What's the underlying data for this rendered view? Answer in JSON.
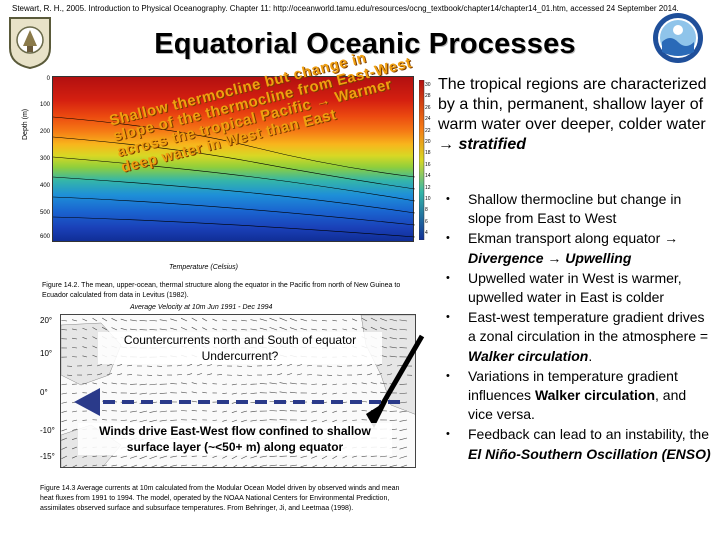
{
  "header": {
    "citation": "Stewart, R. H., 2005. Introduction to Physical Oceanography. Chapter 11: http://oceanworld.tamu.edu/resources/ocng_textbook/chapter14/chapter14_01.htm, accessed 24 September 2014.",
    "title": "Equatorial Oceanic Processes"
  },
  "figure1": {
    "y_axis_label": "Depth (m)",
    "y_ticks": [
      "0",
      "100",
      "200",
      "300",
      "400",
      "500",
      "600"
    ],
    "x_axis_label": "Temperature (Celsius)",
    "scale_ticks": [
      "30",
      "28",
      "26",
      "24",
      "22",
      "20",
      "18",
      "16",
      "14",
      "12",
      "10",
      "8",
      "6",
      "4"
    ],
    "overlay_lines": [
      "Shallow thermocline but change in",
      "slope of the thermocline from East-West",
      "across the tropical Pacific → Warmer",
      "deep water in West than East"
    ],
    "caption": "Figure 14.2. The mean, upper-ocean, thermal structure along the equator in the Pacific from north of New Guinea to Ecuador calculated from data in Levitus (1982)."
  },
  "figure2": {
    "title": "Average Velocity at 10m  Jun 1991 - Dec 1994",
    "lat_labels": [
      "20°",
      "10°",
      "0°",
      "-10°",
      "-15°"
    ],
    "overlay_top": "Countercurrents north and South of equator Undercurrent?",
    "overlay_bottom": "Winds drive East-West flow confined to shallow surface layer (~<50+ m) along equator",
    "caption": "Figure 14.3 Average currents at 10m calculated from the Modular Ocean Model driven by observed winds and mean heat fluxes from 1991 to 1994. The model, operated by the NOAA National Centers for Environmental Prediction, assimilates observed surface and subsurface temperatures. From Behringer, Ji, and Leetmaa (1998)."
  },
  "intro": {
    "text": "The tropical regions are characterized by a thin, permanent, shallow layer of warm water over deeper, colder water →",
    "emphasis": "stratified"
  },
  "bullets": [
    {
      "text": "Shallow thermocline but change in slope from East to West"
    },
    {
      "text": "Ekman transport along equator → ",
      "em1": "Divergence",
      "mid": " → ",
      "em2": "Upwelling"
    },
    {
      "text": "Upwelled water in West is warmer, upwelled water in East is colder"
    },
    {
      "text": "East-west temperature gradient drives a zonal circulation in the atmosphere = ",
      "em1": "Walker circulation",
      "end": "."
    },
    {
      "text": "Variations in temperature gradient influences ",
      "em1": "Walker circulation",
      "end": ", and vice versa."
    },
    {
      "text": "Feedback can lead to an instability, the ",
      "em1": "El Niño-Southern Oscillation (ENSO)"
    }
  ],
  "colors": {
    "overlay_orange": "#f0a010",
    "dashed_arrow": "#2a3a8a"
  }
}
